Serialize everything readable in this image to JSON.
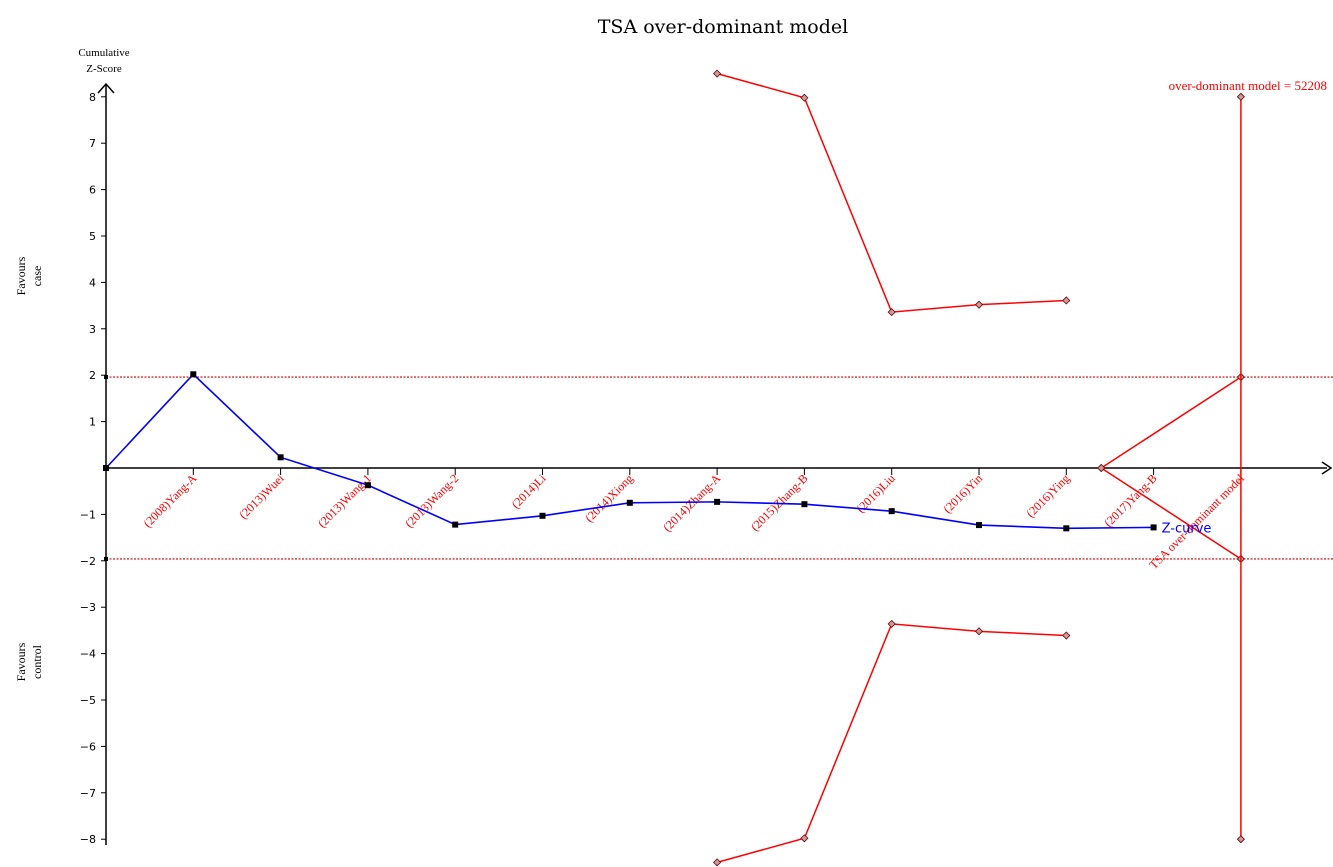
{
  "chart_data": {
    "type": "line",
    "title": "TSA over-dominant model",
    "ylabel": "Cumulative Z-Score",
    "ylabel_lines": [
      "Cumulative",
      "Z-Score"
    ],
    "favours_top": [
      "Favours",
      "case"
    ],
    "favours_bottom": [
      "Favours",
      "control"
    ],
    "ylim": [
      -8.5,
      8.6
    ],
    "yticks": [
      8,
      7,
      6,
      5,
      4,
      3,
      2,
      1,
      -1,
      -2,
      -3,
      -4,
      -5,
      -6,
      -7,
      -8
    ],
    "categories": [
      "(2008)Yang-A",
      "(2013)Wuei",
      "(2013)Wang-1",
      "(2013)Wang-2",
      "(2014)Li",
      "(2014)Xiong",
      "(2014)Zhang-A",
      "(2015)Zhang-B",
      "(2016)Liu",
      "(2016)Yin",
      "(2016)Ying",
      "(2017)Yang-B",
      "TSA over-dominant model"
    ],
    "z_curve": {
      "name": "Z-curve",
      "x": [
        0,
        1,
        2,
        3,
        4,
        5,
        6,
        7,
        8,
        9,
        10,
        11,
        12
      ],
      "values": [
        0,
        2.02,
        0.23,
        -0.37,
        -1.22,
        -1.03,
        -0.75,
        -0.73,
        -0.78,
        -0.93,
        -1.23,
        -1.3,
        -1.28
      ]
    },
    "significance_boundary": {
      "upper": 1.96,
      "lower": -1.96,
      "x_range": [
        0,
        14.5
      ]
    },
    "monitoring_boundary_upper": {
      "x": [
        7,
        8,
        9,
        10,
        11
      ],
      "values": [
        8.5,
        7.98,
        3.36,
        3.52,
        3.61
      ]
    },
    "monitoring_boundary_lower": {
      "x": [
        7,
        8,
        9,
        10,
        11
      ],
      "values": [
        -8.5,
        -7.98,
        -3.36,
        -3.52,
        -3.61
      ]
    },
    "futility_boundary": {
      "x": [
        11.4,
        13
      ],
      "upper": [
        0,
        1.96
      ],
      "lower": [
        0,
        -1.96
      ]
    },
    "required_information_size": {
      "label": "over-dominant model = 52208",
      "x": 13,
      "y_range": [
        -8,
        8
      ]
    },
    "colors": {
      "z_curve": "#0000ff",
      "boundary": "#ff0000",
      "significance": "#cc0000",
      "label": "#ff0000",
      "axis": "#000000"
    },
    "grid": false,
    "legend": "none"
  }
}
